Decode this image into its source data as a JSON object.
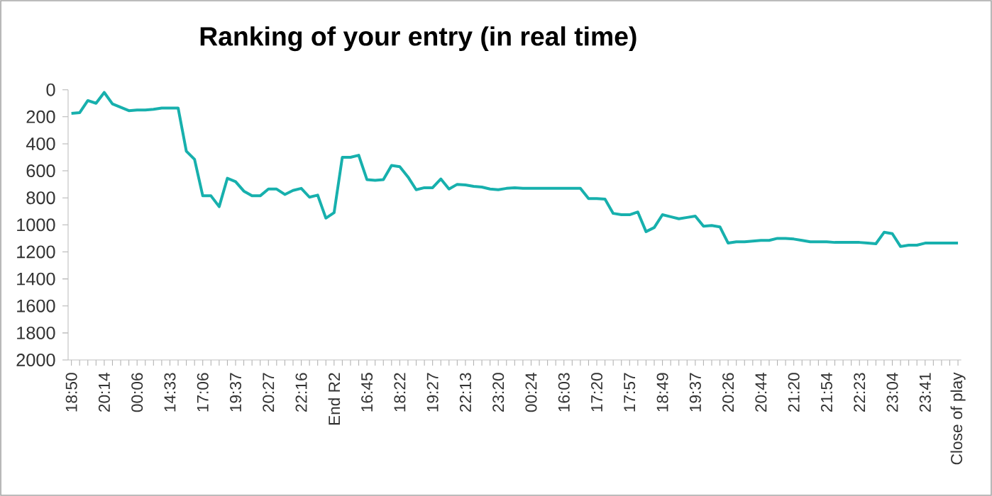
{
  "chart_data": {
    "type": "line",
    "title": "Ranking of your entry (in real time)",
    "categories": [
      "18:50",
      null,
      null,
      null,
      "20:14",
      null,
      null,
      null,
      "00:06",
      null,
      null,
      null,
      "14:33",
      null,
      null,
      null,
      "17:06",
      null,
      null,
      null,
      "19:37",
      null,
      null,
      null,
      "20:27",
      null,
      null,
      null,
      "22:16",
      null,
      null,
      null,
      "End R2",
      null,
      null,
      null,
      "16:45",
      null,
      null,
      null,
      "18:22",
      null,
      null,
      null,
      "19:27",
      null,
      null,
      null,
      "22:13",
      null,
      null,
      null,
      "23:20",
      null,
      null,
      null,
      "00:24",
      null,
      null,
      null,
      "16:03",
      null,
      null,
      null,
      "17:20",
      null,
      null,
      null,
      "17:57",
      null,
      null,
      null,
      "18:49",
      null,
      null,
      null,
      "19:37",
      null,
      null,
      null,
      "20:26",
      null,
      null,
      null,
      "20:44",
      null,
      null,
      null,
      "21:20",
      null,
      null,
      null,
      "21:54",
      null,
      null,
      null,
      "22:23",
      null,
      null,
      null,
      "23:04",
      null,
      null,
      null,
      "23:41",
      null,
      null,
      null,
      "Close of play"
    ],
    "values": [
      175,
      170,
      80,
      100,
      20,
      105,
      130,
      155,
      150,
      150,
      145,
      135,
      135,
      135,
      455,
      515,
      785,
      785,
      865,
      655,
      680,
      750,
      785,
      785,
      735,
      735,
      775,
      745,
      730,
      795,
      780,
      950,
      910,
      500,
      500,
      485,
      665,
      670,
      665,
      560,
      570,
      645,
      740,
      725,
      725,
      660,
      735,
      700,
      705,
      715,
      720,
      735,
      740,
      730,
      725,
      730,
      730,
      730,
      730,
      730,
      730,
      730,
      730,
      805,
      805,
      810,
      915,
      925,
      925,
      905,
      1050,
      1020,
      925,
      940,
      955,
      945,
      935,
      1010,
      1005,
      1015,
      1135,
      1125,
      1125,
      1120,
      1115,
      1115,
      1100,
      1100,
      1105,
      1115,
      1125,
      1125,
      1125,
      1130,
      1130,
      1130,
      1130,
      1135,
      1140,
      1055,
      1065,
      1160,
      1150,
      1150,
      1135,
      1135,
      1135,
      1135,
      1135
    ],
    "color": "#17b0ad",
    "ylim": [
      2000,
      0
    ],
    "yticks": [
      0,
      200,
      400,
      600,
      800,
      1000,
      1200,
      1400,
      1600,
      1800,
      2000
    ]
  }
}
